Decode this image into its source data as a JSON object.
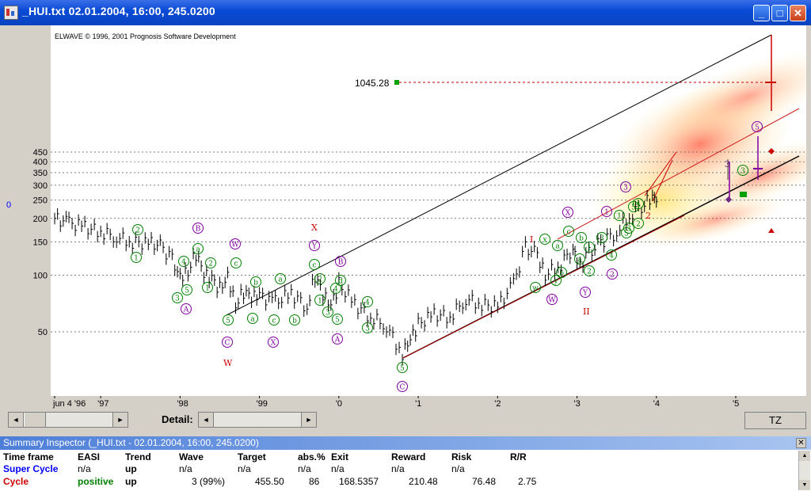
{
  "window": {
    "title": "_HUI.txt  02.01.2004, 16:00, 245.0200",
    "buttons": {
      "minimize": "_",
      "maximize": "□",
      "close": "✕"
    }
  },
  "chart": {
    "copyright": "ELWAVE © 1996, 2001 Prognosis Software Development",
    "target_label": "1045.28",
    "y_ticks": [
      "450",
      "400",
      "350",
      "300",
      "250",
      "200",
      "150",
      "100",
      "50"
    ],
    "x_ticks": [
      "jun 4 '96",
      "'97",
      "'98",
      "'99",
      "'0",
      "'1",
      "'2",
      "'3",
      "'4",
      "'5"
    ],
    "y_axis_min_label": "0"
  },
  "chart_data": {
    "type": "line",
    "title": "",
    "y_scale": "log",
    "ylim": [
      30,
      1200
    ],
    "y_ticks": [
      50,
      100,
      150,
      200,
      250,
      300,
      350,
      400,
      450
    ],
    "x_ticks": [
      "jun 4 '96",
      "'97",
      "'98",
      "'99",
      "'0",
      "'1",
      "'2",
      "'3",
      "'4",
      "'5"
    ],
    "series": [
      {
        "x": [
          1996.42,
          1996.6,
          1996.8,
          1997.0,
          1997.2,
          1997.4,
          1997.6,
          1997.75,
          1997.9,
          1998.0,
          1998.1,
          1998.2,
          1998.3,
          1998.4,
          1998.5,
          1998.6,
          1998.7,
          1998.8,
          1998.9,
          1999.0,
          1999.2,
          1999.4,
          1999.6,
          1999.7,
          1999.8,
          1999.9,
          2000.0,
          2000.2,
          2000.4,
          2000.6,
          2000.8,
          2000.9,
          2001.0,
          2001.2,
          2001.4,
          2001.6,
          2001.8,
          2002.0,
          2002.2,
          2002.35,
          2002.5,
          2002.6,
          2002.8,
          2002.95,
          2003.0,
          2003.15,
          2003.3,
          2003.5,
          2003.7,
          2003.85,
          2003.95,
          2004.0
        ],
        "values": [
          200,
          190,
          180,
          170,
          160,
          150,
          148,
          145,
          120,
          100,
          105,
          130,
          100,
          95,
          85,
          100,
          70,
          82,
          75,
          78,
          72,
          80,
          68,
          100,
          78,
          68,
          90,
          70,
          60,
          54,
          38,
          45,
          55,
          62,
          60,
          75,
          70,
          68,
          90,
          140,
          130,
          100,
          115,
          140,
          110,
          130,
          150,
          170,
          215,
          240,
          255,
          245
        ]
      }
    ],
    "target_price": 1045.28,
    "wave_labels": [
      "W",
      "X",
      "I",
      "II",
      "(1)",
      "(2)",
      "(3)",
      "(4)",
      "(5)",
      "(a)",
      "(b)",
      "(c)",
      "A",
      "B",
      "C",
      "X",
      "Y",
      "W"
    ]
  },
  "controls": {
    "detail_label": "Detail:",
    "tz_label": "TZ",
    "arrow_left": "◄",
    "arrow_right": "►"
  },
  "inspector": {
    "title": "Summary Inspector (_HUI.txt - 02.01.2004, 16:00, 245.0200)",
    "close": "✕",
    "columns": [
      "Time frame",
      "EASI",
      "Trend",
      "Wave",
      "Target",
      "abs.%",
      "Exit",
      "Reward",
      "Risk",
      "R/R"
    ],
    "rows": [
      {
        "timeframe": "Super Cycle",
        "easi": "n/a",
        "trend": "up",
        "wave": "n/a",
        "target": "n/a",
        "abs": "n/a",
        "exit": "n/a",
        "reward": "n/a",
        "risk": "n/a",
        "rr": ""
      },
      {
        "timeframe": "Cycle",
        "easi": "positive",
        "trend": "up",
        "wave": "3 (99%)",
        "target": "455.50",
        "abs": "86",
        "exit": "168.5357",
        "reward": "210.48",
        "risk": "76.48",
        "rr": "2.75"
      }
    ],
    "colors": {
      "super_cycle": "#0000ff",
      "cycle": "#cc0000",
      "positive": "#008000"
    }
  }
}
